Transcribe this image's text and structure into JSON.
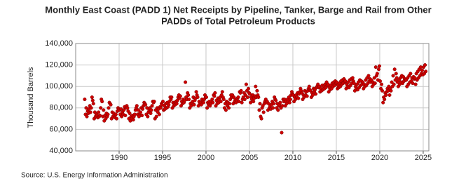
{
  "chart_data": {
    "type": "scatter",
    "title": [
      "Monthly East Coast (PADD 1) Net Receipts by Pipeline, Tanker, Barge and Rail from Other",
      "PADDs of Total Petroleum Products"
    ],
    "y_label": "Thousand Barrels",
    "source": "Source: U.S. Energy Information Administration",
    "xlim": [
      1985,
      2025.65
    ],
    "xticks": [
      1990,
      1995,
      2000,
      2005,
      2010,
      2015,
      2020,
      2025
    ],
    "ylim": [
      40000,
      140000
    ],
    "yticks": [
      {
        "value": 40000,
        "label": "40,000"
      },
      {
        "value": 60000,
        "label": "60,000"
      },
      {
        "value": 80000,
        "label": "80,000"
      },
      {
        "value": 100000,
        "label": "100,000"
      },
      {
        "value": 120000,
        "label": "120,000"
      },
      {
        "value": 140000,
        "label": "140,000"
      }
    ],
    "grid": true,
    "x": [
      1986.04,
      1986.13,
      1986.21,
      1986.29,
      1986.38,
      1986.46,
      1986.54,
      1986.63,
      1986.71,
      1986.79,
      1986.88,
      1986.96,
      1987.04,
      1987.13,
      1987.21,
      1987.29,
      1987.38,
      1987.46,
      1987.54,
      1987.63,
      1987.71,
      1987.79,
      1987.88,
      1987.96,
      1988.04,
      1988.13,
      1988.21,
      1988.29,
      1988.38,
      1988.46,
      1988.54,
      1988.63,
      1988.71,
      1988.79,
      1988.88,
      1988.96,
      1989.04,
      1989.13,
      1989.21,
      1989.29,
      1989.38,
      1989.46,
      1989.54,
      1989.63,
      1989.71,
      1989.79,
      1989.88,
      1989.96,
      1990.04,
      1990.13,
      1990.21,
      1990.29,
      1990.38,
      1990.46,
      1990.54,
      1990.63,
      1990.71,
      1990.79,
      1990.88,
      1990.96,
      1991.04,
      1991.13,
      1991.21,
      1991.29,
      1991.38,
      1991.46,
      1991.54,
      1991.63,
      1991.71,
      1991.79,
      1991.88,
      1991.96,
      1992.04,
      1992.13,
      1992.21,
      1992.29,
      1992.38,
      1992.46,
      1992.54,
      1992.63,
      1992.71,
      1992.79,
      1992.88,
      1992.96,
      1993.04,
      1993.13,
      1993.21,
      1993.29,
      1993.38,
      1993.46,
      1993.54,
      1993.63,
      1993.71,
      1993.79,
      1993.88,
      1993.96,
      1994.04,
      1994.13,
      1994.21,
      1994.29,
      1994.38,
      1994.46,
      1994.54,
      1994.63,
      1994.71,
      1994.79,
      1994.88,
      1994.96,
      1995.04,
      1995.13,
      1995.21,
      1995.29,
      1995.38,
      1995.46,
      1995.54,
      1995.63,
      1995.71,
      1995.79,
      1995.88,
      1995.96,
      1996.04,
      1996.13,
      1996.21,
      1996.29,
      1996.38,
      1996.46,
      1996.54,
      1996.63,
      1996.71,
      1996.79,
      1996.88,
      1996.96,
      1997.04,
      1997.13,
      1997.21,
      1997.29,
      1997.38,
      1997.46,
      1997.54,
      1997.63,
      1997.71,
      1997.79,
      1997.88,
      1997.96,
      1998.04,
      1998.13,
      1998.21,
      1998.29,
      1998.38,
      1998.46,
      1998.54,
      1998.63,
      1998.71,
      1998.79,
      1998.88,
      1998.96,
      1999.04,
      1999.13,
      1999.21,
      1999.29,
      1999.38,
      1999.46,
      1999.54,
      1999.63,
      1999.71,
      1999.79,
      1999.88,
      1999.96,
      2000.04,
      2000.13,
      2000.21,
      2000.29,
      2000.38,
      2000.46,
      2000.54,
      2000.63,
      2000.71,
      2000.79,
      2000.88,
      2000.96,
      2001.04,
      2001.13,
      2001.21,
      2001.29,
      2001.38,
      2001.46,
      2001.54,
      2001.63,
      2001.71,
      2001.79,
      2001.88,
      2001.96,
      2002.04,
      2002.13,
      2002.21,
      2002.29,
      2002.38,
      2002.46,
      2002.54,
      2002.63,
      2002.71,
      2002.79,
      2002.88,
      2002.96,
      2003.04,
      2003.13,
      2003.21,
      2003.29,
      2003.38,
      2003.46,
      2003.54,
      2003.63,
      2003.71,
      2003.79,
      2003.88,
      2003.96,
      2004.04,
      2004.13,
      2004.21,
      2004.29,
      2004.38,
      2004.46,
      2004.54,
      2004.63,
      2004.71,
      2004.79,
      2004.88,
      2004.96,
      2005.04,
      2005.13,
      2005.21,
      2005.29,
      2005.38,
      2005.46,
      2005.54,
      2005.63,
      2005.71,
      2005.79,
      2005.88,
      2005.96,
      2006.04,
      2006.13,
      2006.21,
      2006.29,
      2006.38,
      2006.46,
      2006.54,
      2006.63,
      2006.71,
      2006.79,
      2006.88,
      2006.96,
      2007.04,
      2007.13,
      2007.21,
      2007.29,
      2007.38,
      2007.46,
      2007.54,
      2007.63,
      2007.71,
      2007.79,
      2007.88,
      2007.96,
      2008.04,
      2008.13,
      2008.21,
      2008.29,
      2008.38,
      2008.46,
      2008.54,
      2008.63,
      2008.71,
      2008.79,
      2008.88,
      2008.96,
      2009.04,
      2009.13,
      2009.21,
      2009.29,
      2009.38,
      2009.46,
      2009.54,
      2009.63,
      2009.71,
      2009.79,
      2009.88,
      2009.96,
      2010.04,
      2010.13,
      2010.21,
      2010.29,
      2010.38,
      2010.46,
      2010.54,
      2010.63,
      2010.71,
      2010.79,
      2010.88,
      2010.96,
      2011.04,
      2011.13,
      2011.21,
      2011.29,
      2011.38,
      2011.46,
      2011.54,
      2011.63,
      2011.71,
      2011.79,
      2011.88,
      2011.96,
      2012.04,
      2012.13,
      2012.21,
      2012.29,
      2012.38,
      2012.46,
      2012.54,
      2012.63,
      2012.71,
      2012.79,
      2012.88,
      2012.96,
      2013.04,
      2013.13,
      2013.21,
      2013.29,
      2013.38,
      2013.46,
      2013.54,
      2013.63,
      2013.71,
      2013.79,
      2013.88,
      2013.96,
      2014.04,
      2014.13,
      2014.21,
      2014.29,
      2014.38,
      2014.46,
      2014.54,
      2014.63,
      2014.71,
      2014.79,
      2014.88,
      2014.96,
      2015.04,
      2015.13,
      2015.21,
      2015.29,
      2015.38,
      2015.46,
      2015.54,
      2015.63,
      2015.71,
      2015.79,
      2015.88,
      2015.96,
      2016.04,
      2016.13,
      2016.21,
      2016.29,
      2016.38,
      2016.46,
      2016.54,
      2016.63,
      2016.71,
      2016.79,
      2016.88,
      2016.96,
      2017.04,
      2017.13,
      2017.21,
      2017.29,
      2017.38,
      2017.46,
      2017.54,
      2017.63,
      2017.71,
      2017.79,
      2017.88,
      2017.96,
      2018.04,
      2018.13,
      2018.21,
      2018.29,
      2018.38,
      2018.46,
      2018.54,
      2018.63,
      2018.71,
      2018.79,
      2018.88,
      2018.96,
      2019.04,
      2019.13,
      2019.21,
      2019.29,
      2019.38,
      2019.46,
      2019.54,
      2019.63,
      2019.71,
      2019.79,
      2019.88,
      2019.96,
      2020.04,
      2020.13,
      2020.21,
      2020.29,
      2020.38,
      2020.46,
      2020.54,
      2020.63,
      2020.71,
      2020.79,
      2020.88,
      2020.96,
      2021.04,
      2021.13,
      2021.21,
      2021.29,
      2021.38,
      2021.46,
      2021.54,
      2021.63,
      2021.71,
      2021.79,
      2021.88,
      2021.96,
      2022.04,
      2022.13,
      2022.21,
      2022.29,
      2022.38,
      2022.46,
      2022.54,
      2022.63,
      2022.71,
      2022.79,
      2022.88,
      2022.96,
      2023.04,
      2023.13,
      2023.21,
      2023.29,
      2023.38,
      2023.46,
      2023.54,
      2023.63,
      2023.71,
      2023.79,
      2023.88,
      2023.96,
      2024.04,
      2024.13,
      2024.21,
      2024.29,
      2024.38,
      2024.46,
      2024.54,
      2024.63,
      2024.71,
      2024.79,
      2024.88,
      2024.96,
      2025.04,
      2025.13,
      2025.21,
      2025.29
    ],
    "color": "#cc0000",
    "values": [
      88000,
      74000,
      80000,
      72000,
      77000,
      75000,
      79000,
      82000,
      76000,
      80000,
      90000,
      87000,
      84000,
      70000,
      76000,
      72000,
      74000,
      73000,
      71000,
      76000,
      72000,
      73000,
      80000,
      88000,
      86000,
      72000,
      78000,
      68000,
      73000,
      70000,
      75000,
      72000,
      74000,
      80000,
      85000,
      84000,
      83000,
      70000,
      76000,
      72000,
      75000,
      73000,
      71000,
      74000,
      70000,
      77000,
      80000,
      79000,
      78000,
      74000,
      79000,
      72000,
      76000,
      74000,
      78000,
      81000,
      73000,
      80000,
      82000,
      80000,
      77000,
      70000,
      75000,
      68000,
      72000,
      70000,
      73000,
      69000,
      72000,
      74000,
      78000,
      80000,
      82000,
      74000,
      78000,
      72000,
      75000,
      76000,
      80000,
      73000,
      79000,
      82000,
      85000,
      84000,
      83000,
      74000,
      80000,
      72000,
      76000,
      78000,
      80000,
      75000,
      78000,
      82000,
      86000,
      85000,
      86000,
      70000,
      78000,
      72000,
      80000,
      76000,
      79000,
      74000,
      81000,
      80000,
      84000,
      83000,
      86000,
      78000,
      82000,
      79000,
      84000,
      80000,
      85000,
      81000,
      83000,
      86000,
      90000,
      88000,
      90000,
      80000,
      85000,
      82000,
      84000,
      83000,
      86000,
      84000,
      87000,
      90000,
      92000,
      89000,
      91000,
      82000,
      86000,
      84000,
      88000,
      85000,
      87000,
      104000,
      90000,
      88000,
      94000,
      92000,
      88000,
      80000,
      84000,
      82000,
      85000,
      86000,
      90000,
      83000,
      87000,
      89000,
      95000,
      92000,
      90000,
      82000,
      86000,
      84000,
      85000,
      83000,
      88000,
      86000,
      85000,
      88000,
      92000,
      90000,
      90000,
      80000,
      85000,
      83000,
      86000,
      82000,
      84000,
      86000,
      88000,
      85000,
      92000,
      91000,
      94000,
      82000,
      87000,
      84000,
      89000,
      85000,
      88000,
      90000,
      86000,
      92000,
      95000,
      90000,
      88000,
      80000,
      84000,
      78000,
      86000,
      82000,
      85000,
      80000,
      84000,
      88000,
      92000,
      90000,
      92000,
      84000,
      90000,
      86000,
      88000,
      85000,
      87000,
      89000,
      90000,
      86000,
      95000,
      94000,
      96000,
      85000,
      88000,
      90000,
      94000,
      88000,
      92000,
      102000,
      96000,
      90000,
      98000,
      94000,
      93000,
      85000,
      90000,
      88000,
      92000,
      86000,
      89000,
      91000,
      100000,
      90000,
      96000,
      92000,
      90000,
      78000,
      84000,
      72000,
      70000,
      80000,
      82000,
      76000,
      84000,
      86000,
      88000,
      85000,
      86000,
      78000,
      84000,
      80000,
      82000,
      79000,
      83000,
      86000,
      80000,
      84000,
      90000,
      88000,
      87000,
      80000,
      84000,
      78000,
      82000,
      83000,
      85000,
      80000,
      57000,
      82000,
      88000,
      86000,
      88000,
      82000,
      86000,
      84000,
      88000,
      86000,
      90000,
      85000,
      88000,
      92000,
      95000,
      93000,
      92000,
      86000,
      90000,
      88000,
      92000,
      90000,
      94000,
      89000,
      93000,
      95000,
      98000,
      96000,
      94000,
      88000,
      92000,
      90000,
      96000,
      92000,
      95000,
      91000,
      96000,
      98000,
      100000,
      97000,
      96000,
      90000,
      94000,
      92000,
      98000,
      95000,
      97000,
      93000,
      99000,
      100000,
      102000,
      99000,
      100000,
      95000,
      98000,
      96000,
      101000,
      97000,
      100000,
      98000,
      102000,
      99000,
      104000,
      101000,
      102000,
      95000,
      99000,
      97000,
      101000,
      98000,
      103000,
      100000,
      104000,
      101000,
      105000,
      103000,
      104000,
      98000,
      101000,
      99000,
      103000,
      100000,
      105000,
      102000,
      106000,
      103000,
      107000,
      104000,
      105000,
      98000,
      102000,
      100000,
      104000,
      99000,
      106000,
      101000,
      107000,
      103000,
      108000,
      105000,
      103000,
      96000,
      100000,
      98000,
      102000,
      97000,
      104000,
      99000,
      106000,
      101000,
      105000,
      102000,
      104000,
      98000,
      102000,
      100000,
      106000,
      101000,
      108000,
      103000,
      110000,
      105000,
      107000,
      104000,
      106000,
      100000,
      104000,
      102000,
      108000,
      103000,
      118000,
      110000,
      112000,
      106000,
      116000,
      119000,
      105000,
      98000,
      102000,
      96000,
      85000,
      90000,
      88000,
      94000,
      92000,
      95000,
      98000,
      96000,
      100000,
      92000,
      98000,
      96000,
      104000,
      100000,
      110000,
      102000,
      116000,
      106000,
      112000,
      108000,
      104000,
      100000,
      106000,
      102000,
      108000,
      104000,
      110000,
      103000,
      109000,
      105000,
      107000,
      106000,
      106000,
      100000,
      108000,
      102000,
      110000,
      104000,
      112000,
      105000,
      108000,
      103000,
      109000,
      107000,
      108000,
      102000,
      112000,
      106000,
      114000,
      108000,
      116000,
      110000,
      118000,
      112000,
      115000,
      111000,
      118000,
      112000,
      120000,
      114000
    ]
  }
}
